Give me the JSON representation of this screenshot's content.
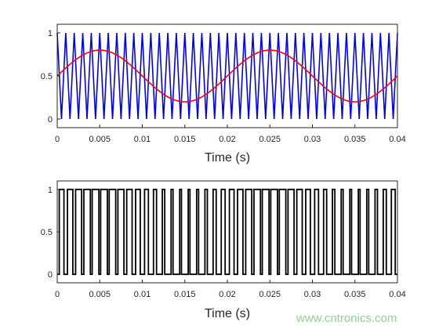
{
  "watermark": "www.cntronics.com",
  "chart_data": [
    {
      "type": "line",
      "title": "",
      "xlabel": "Time (s)",
      "ylabel": "",
      "xlim": [
        0,
        0.04
      ],
      "ylim": [
        -0.1,
        1.1
      ],
      "x_ticks": [
        "0",
        "0.005",
        "0.01",
        "0.015",
        "0.02",
        "0.025",
        "0.03",
        "0.035",
        "0.04"
      ],
      "y_ticks": [
        "0",
        "0.5",
        "1"
      ],
      "grid": false,
      "series": [
        {
          "color": "#0000ff",
          "kind": "triangle carrier",
          "min": 0,
          "max": 1,
          "cycles": 40
        },
        {
          "color": "#ff0000",
          "kind": "sine reference",
          "offset": 0.5,
          "amplitude": 0.3,
          "frequency_hz": 50
        }
      ]
    },
    {
      "type": "line",
      "title": "",
      "xlabel": "Time (s)",
      "ylabel": "",
      "xlim": [
        0,
        0.04
      ],
      "ylim": [
        -0.1,
        1.1
      ],
      "x_ticks": [
        "0",
        "0.005",
        "0.01",
        "0.015",
        "0.02",
        "0.025",
        "0.03",
        "0.035",
        "0.04"
      ],
      "y_ticks": [
        "0",
        "0.5",
        "1"
      ],
      "grid": false,
      "series": [
        {
          "color": "#000000",
          "kind": "PWM output",
          "levels": [
            0,
            1
          ]
        }
      ]
    }
  ]
}
